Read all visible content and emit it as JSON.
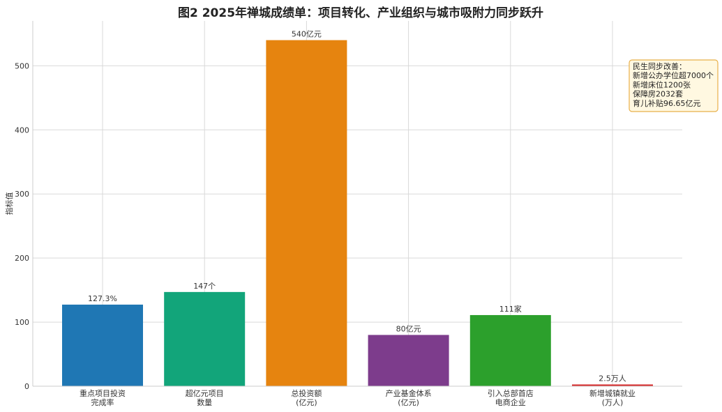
{
  "chart_data": {
    "type": "bar",
    "title": "图2  2025年禅城成绩单：项目转化、产业组织与城市吸附力同步跃升",
    "ylabel": "指标值",
    "xlabel": "",
    "ylim": [
      0,
      570
    ],
    "yticks": [
      0,
      100,
      200,
      300,
      400,
      500
    ],
    "grid": true,
    "categories": [
      [
        "重点项目投资",
        "完成率"
      ],
      [
        "超亿元项目",
        "数量"
      ],
      [
        "总投资额",
        "(亿元)"
      ],
      [
        "产业基金体系",
        "(亿元)"
      ],
      [
        "引入总部首店",
        "电商企业"
      ],
      [
        "新增城镇就业",
        "(万人)"
      ]
    ],
    "values": [
      127.3,
      147,
      540,
      80,
      111,
      2.5
    ],
    "data_labels": [
      "127.3%",
      "147个",
      "540亿元",
      "80亿元",
      "111家",
      "2.5万人"
    ],
    "colors": [
      "#1f77b4",
      "#12a57a",
      "#e6840f",
      "#7d3c8c",
      "#2ca02c",
      "#d62728"
    ],
    "annotation": {
      "lines": [
        "民生同步改善：",
        "新增公办学位超7000个",
        "新增床位1200张",
        "保障房2032套",
        "育儿补贴96.65亿元"
      ],
      "placement": "top-right",
      "background": "#fff8e1",
      "border": "#e8b04a"
    }
  }
}
